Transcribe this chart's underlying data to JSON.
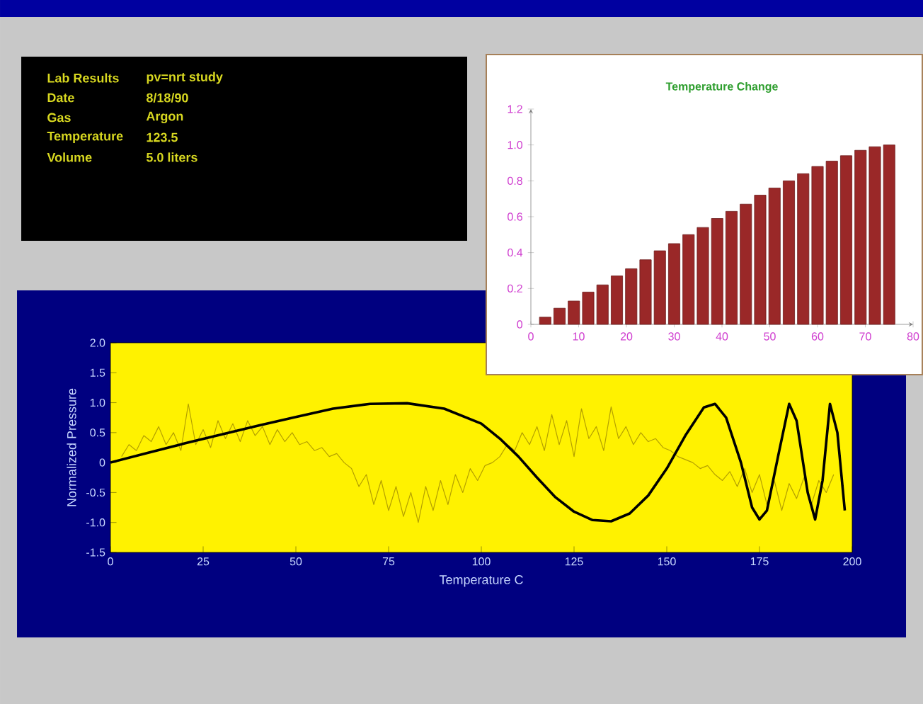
{
  "chart_data": [
    {
      "type": "other",
      "annotations": [
        "Lab Results",
        "pv=nrt study",
        "Date",
        "8/18/90",
        "Gas",
        "Argon",
        "Temperature",
        "123.5",
        "Volume",
        "5.0 liters"
      ]
    },
    {
      "type": "bar",
      "title": "Temperature Change",
      "color": "#9a2828",
      "x": [
        3,
        6,
        9,
        12,
        15,
        18,
        21,
        24,
        27,
        30,
        33,
        36,
        39,
        42,
        45,
        48,
        51,
        54,
        57,
        60,
        63,
        66,
        69,
        72,
        75
      ],
      "values": [
        0.04,
        0.09,
        0.13,
        0.18,
        0.22,
        0.27,
        0.31,
        0.36,
        0.41,
        0.45,
        0.5,
        0.54,
        0.59,
        0.63,
        0.67,
        0.72,
        0.76,
        0.8,
        0.84,
        0.88,
        0.91,
        0.94,
        0.97,
        0.99,
        1.0
      ],
      "xlim": [
        0,
        80
      ],
      "xticks": [
        0,
        10,
        20,
        30,
        40,
        50,
        60,
        70,
        80
      ],
      "ylim": [
        0,
        1.2
      ],
      "yticks": [
        0,
        {
          "value": 0.2,
          "label": "0.2"
        },
        {
          "value": 0.4,
          "label": "0.4"
        },
        {
          "value": 0.6,
          "label": "0.6"
        },
        {
          "value": 0.8,
          "label": "0.8"
        },
        {
          "value": 1.0,
          "label": "1.0"
        },
        {
          "value": 1.2,
          "label": "1.2"
        }
      ]
    },
    {
      "type": "line",
      "xlabel": "Temperature C",
      "ylabel": "Normalized Pressure",
      "xlim": [
        0,
        200
      ],
      "xticks": [
        0,
        25,
        50,
        75,
        100,
        125,
        150,
        175,
        200
      ],
      "ylim": [
        -1.5,
        2.0
      ],
      "yticks": [
        {
          "value": -1.5,
          "label": "-1.5"
        },
        {
          "value": -1.0,
          "label": "-1.0"
        },
        {
          "value": -0.5,
          "label": "-0.5"
        },
        0,
        {
          "value": 0.5,
          "label": "0.5"
        },
        {
          "value": 1.0,
          "label": "1.0"
        },
        {
          "value": 1.5,
          "label": "1.5"
        },
        {
          "value": 2.0,
          "label": "2.0"
        }
      ],
      "series": [
        {
          "color": "#b4a000",
          "x": [
            3,
            5,
            7,
            9,
            11,
            13,
            15,
            17,
            19,
            21,
            23,
            25,
            27,
            29,
            31,
            33,
            35,
            37,
            39,
            41,
            43,
            45,
            47,
            49,
            51,
            53,
            55,
            57,
            59,
            61,
            63,
            65,
            67,
            69,
            71,
            73,
            75,
            77,
            79,
            81,
            83,
            85,
            87,
            89,
            91,
            93,
            95,
            97,
            99,
            101,
            103,
            105,
            107,
            109,
            111,
            113,
            115,
            117,
            119,
            121,
            123,
            125,
            127,
            129,
            131,
            133,
            135,
            137,
            139,
            141,
            143,
            145,
            147,
            149,
            151,
            153,
            155,
            157,
            159,
            161,
            163,
            165,
            167,
            169,
            171,
            173,
            175,
            177,
            179,
            181,
            183,
            185,
            187,
            189,
            191,
            193,
            195
          ],
          "values": [
            0.1,
            0.3,
            0.2,
            0.45,
            0.35,
            0.6,
            0.3,
            0.5,
            0.2,
            0.98,
            0.3,
            0.55,
            0.25,
            0.7,
            0.4,
            0.65,
            0.35,
            0.7,
            0.45,
            0.6,
            0.3,
            0.55,
            0.35,
            0.5,
            0.3,
            0.35,
            0.2,
            0.25,
            0.1,
            0.15,
            0.0,
            -0.1,
            -0.4,
            -0.2,
            -0.7,
            -0.3,
            -0.8,
            -0.4,
            -0.9,
            -0.5,
            -1.0,
            -0.4,
            -0.8,
            -0.3,
            -0.7,
            -0.2,
            -0.5,
            -0.1,
            -0.3,
            -0.05,
            0.0,
            0.1,
            0.3,
            0.2,
            0.5,
            0.3,
            0.6,
            0.2,
            0.8,
            0.3,
            0.7,
            0.1,
            0.9,
            0.4,
            0.6,
            0.2,
            0.93,
            0.4,
            0.6,
            0.3,
            0.5,
            0.35,
            0.4,
            0.25,
            0.2,
            0.1,
            0.05,
            0.0,
            -0.1,
            -0.05,
            -0.2,
            -0.3,
            -0.15,
            -0.4,
            -0.1,
            -0.5,
            -0.2,
            -0.7,
            -0.3,
            -0.8,
            -0.35,
            -0.6,
            -0.25,
            -0.7,
            -0.3,
            -0.5,
            -0.2
          ]
        },
        {
          "color": "#000000",
          "x": [
            0,
            10,
            20,
            30,
            40,
            50,
            60,
            70,
            80,
            90,
            100,
            105,
            110,
            115,
            120,
            125,
            130,
            135,
            140,
            145,
            150,
            155,
            160,
            163,
            166,
            170,
            173,
            175,
            177,
            180,
            183,
            185,
            188,
            190,
            192,
            194,
            196,
            198
          ],
          "values": [
            0,
            0.16,
            0.32,
            0.47,
            0.62,
            0.76,
            0.9,
            0.98,
            0.99,
            0.9,
            0.65,
            0.4,
            0.1,
            -0.25,
            -0.58,
            -0.82,
            -0.96,
            -0.98,
            -0.85,
            -0.55,
            -0.1,
            0.45,
            0.92,
            0.98,
            0.75,
            0.0,
            -0.75,
            -0.95,
            -0.8,
            0.1,
            0.98,
            0.7,
            -0.5,
            -0.95,
            -0.3,
            0.98,
            0.5,
            -0.8
          ]
        }
      ]
    }
  ]
}
